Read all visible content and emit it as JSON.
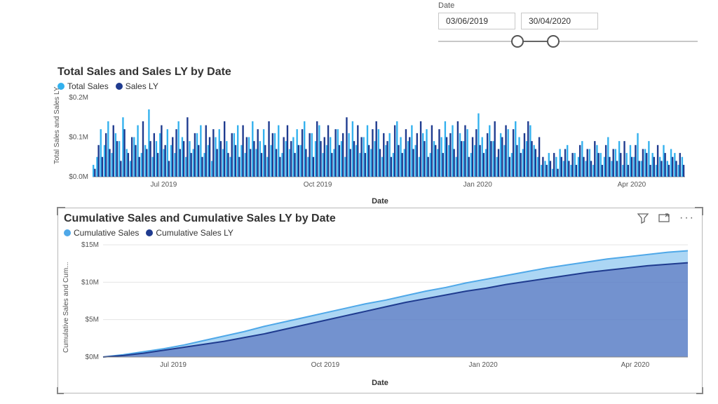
{
  "slicer": {
    "label": "Date",
    "start": "03/06/2019",
    "end": "30/04/2020",
    "handle1_pct": 28,
    "handle2_pct": 42
  },
  "chart1": {
    "type": "bar",
    "title": "Total Sales and Sales LY by Date",
    "legend": [
      {
        "label": "Total Sales",
        "color": "#33b1ee"
      },
      {
        "label": "Sales LY",
        "color": "#1f3b8f"
      }
    ],
    "y_axis_label": "Total Sales and Sales LY",
    "x_axis_label": "Date",
    "ylim": [
      0,
      0.2
    ],
    "y_ticks": [
      0,
      0.1,
      0.2
    ],
    "y_tick_labels": [
      "$0.0M",
      "$0.1M",
      "$0.2M"
    ],
    "x_tick_labels": [
      "Jul 2019",
      "Oct 2019",
      "Jan 2020",
      "Apr 2020"
    ],
    "x_tick_positions": [
      0.12,
      0.38,
      0.65,
      0.91
    ],
    "plot_bg": "#ffffff",
    "series": {
      "total_sales": [
        0.03,
        0.05,
        0.12,
        0.08,
        0.14,
        0.06,
        0.11,
        0.09,
        0.15,
        0.07,
        0.04,
        0.1,
        0.13,
        0.06,
        0.08,
        0.17,
        0.05,
        0.09,
        0.11,
        0.07,
        0.12,
        0.08,
        0.06,
        0.14,
        0.1,
        0.05,
        0.09,
        0.07,
        0.11,
        0.13,
        0.06,
        0.08,
        0.04,
        0.1,
        0.12,
        0.07,
        0.09,
        0.05,
        0.11,
        0.13,
        0.08,
        0.06,
        0.1,
        0.14,
        0.07,
        0.09,
        0.12,
        0.05,
        0.08,
        0.11,
        0.13,
        0.06,
        0.09,
        0.07,
        0.1,
        0.12,
        0.08,
        0.14,
        0.05,
        0.11,
        0.09,
        0.13,
        0.06,
        0.08,
        0.1,
        0.07,
        0.12,
        0.09,
        0.05,
        0.11,
        0.14,
        0.08,
        0.06,
        0.1,
        0.13,
        0.07,
        0.09,
        0.12,
        0.05,
        0.08,
        0.11,
        0.06,
        0.14,
        0.1,
        0.07,
        0.09,
        0.13,
        0.08,
        0.05,
        0.11,
        0.12,
        0.06,
        0.09,
        0.07,
        0.1,
        0.14,
        0.08,
        0.13,
        0.05,
        0.11,
        0.09,
        0.12,
        0.06,
        0.08,
        0.16,
        0.1,
        0.07,
        0.13,
        0.09,
        0.05,
        0.11,
        0.08,
        0.12,
        0.06,
        0.14,
        0.1,
        0.07,
        0.09,
        0.13,
        0.08,
        0.05,
        0.03,
        0.04,
        0.06,
        0.02,
        0.05,
        0.07,
        0.04,
        0.08,
        0.03,
        0.06,
        0.05,
        0.09,
        0.04,
        0.07,
        0.03,
        0.08,
        0.06,
        0.05,
        0.1,
        0.04,
        0.07,
        0.09,
        0.03,
        0.06,
        0.08,
        0.05,
        0.11,
        0.04,
        0.07,
        0.09,
        0.06,
        0.03,
        0.05,
        0.08,
        0.04,
        0.07,
        0.06,
        0.03,
        0.05
      ],
      "sales_ly": [
        0.02,
        0.08,
        0.05,
        0.11,
        0.07,
        0.13,
        0.09,
        0.04,
        0.12,
        0.06,
        0.1,
        0.08,
        0.05,
        0.14,
        0.07,
        0.09,
        0.11,
        0.06,
        0.13,
        0.08,
        0.04,
        0.1,
        0.12,
        0.07,
        0.09,
        0.15,
        0.06,
        0.11,
        0.08,
        0.05,
        0.13,
        0.1,
        0.12,
        0.07,
        0.09,
        0.14,
        0.06,
        0.11,
        0.08,
        0.05,
        0.13,
        0.1,
        0.07,
        0.09,
        0.12,
        0.06,
        0.08,
        0.14,
        0.11,
        0.07,
        0.05,
        0.1,
        0.13,
        0.09,
        0.06,
        0.08,
        0.12,
        0.07,
        0.11,
        0.05,
        0.14,
        0.09,
        0.1,
        0.13,
        0.06,
        0.12,
        0.08,
        0.11,
        0.15,
        0.07,
        0.09,
        0.13,
        0.1,
        0.06,
        0.08,
        0.12,
        0.14,
        0.07,
        0.11,
        0.09,
        0.05,
        0.13,
        0.08,
        0.06,
        0.12,
        0.1,
        0.07,
        0.11,
        0.14,
        0.09,
        0.05,
        0.13,
        0.08,
        0.12,
        0.06,
        0.1,
        0.11,
        0.07,
        0.14,
        0.09,
        0.13,
        0.05,
        0.1,
        0.12,
        0.08,
        0.06,
        0.11,
        0.09,
        0.14,
        0.07,
        0.1,
        0.13,
        0.05,
        0.12,
        0.08,
        0.06,
        0.11,
        0.14,
        0.09,
        0.07,
        0.1,
        0.05,
        0.03,
        0.04,
        0.06,
        0.02,
        0.05,
        0.07,
        0.04,
        0.06,
        0.03,
        0.08,
        0.05,
        0.07,
        0.04,
        0.09,
        0.06,
        0.03,
        0.08,
        0.05,
        0.07,
        0.04,
        0.06,
        0.09,
        0.03,
        0.05,
        0.08,
        0.04,
        0.07,
        0.06,
        0.03,
        0.05,
        0.08,
        0.04,
        0.06,
        0.03,
        0.05,
        0.04,
        0.06,
        0.03
      ]
    }
  },
  "chart2": {
    "type": "area",
    "title": "Cumulative Sales and Cumulative Sales LY by Date",
    "legend": [
      {
        "label": "Cumulative Sales",
        "color": "#4fa8e8"
      },
      {
        "label": "Cumulative Sales LY",
        "color": "#1f3b8f"
      }
    ],
    "y_axis_label": "Cumulative Sales and Cum...",
    "x_axis_label": "Date",
    "ylim": [
      0,
      15
    ],
    "y_ticks": [
      0,
      5,
      10,
      15
    ],
    "y_tick_labels": [
      "$0M",
      "$5M",
      "$10M",
      "$15M"
    ],
    "x_tick_labels": [
      "Jul 2019",
      "Oct 2019",
      "Jan 2020",
      "Apr 2020"
    ],
    "x_tick_positions": [
      0.12,
      0.38,
      0.65,
      0.91
    ],
    "plot_bg": "#ffffff",
    "grid_color": "#e5e5e5",
    "series": {
      "cumulative_sales": [
        0,
        0.3,
        0.7,
        1.1,
        1.6,
        2.2,
        2.8,
        3.4,
        4.1,
        4.7,
        5.3,
        5.9,
        6.5,
        7.1,
        7.6,
        8.2,
        8.8,
        9.3,
        9.9,
        10.4,
        10.9,
        11.4,
        11.9,
        12.3,
        12.7,
        13.1,
        13.4,
        13.7,
        14.0,
        14.2
      ],
      "cumulative_sales_ly": [
        0,
        0.2,
        0.5,
        0.9,
        1.3,
        1.7,
        2.1,
        2.6,
        3.1,
        3.7,
        4.3,
        4.9,
        5.5,
        6.1,
        6.7,
        7.3,
        7.8,
        8.3,
        8.8,
        9.2,
        9.7,
        10.1,
        10.5,
        10.9,
        11.3,
        11.6,
        11.9,
        12.2,
        12.4,
        12.6
      ]
    },
    "fill_top": "#9dcff2",
    "fill_bottom": "#5a7fc7",
    "line_width": 2
  }
}
